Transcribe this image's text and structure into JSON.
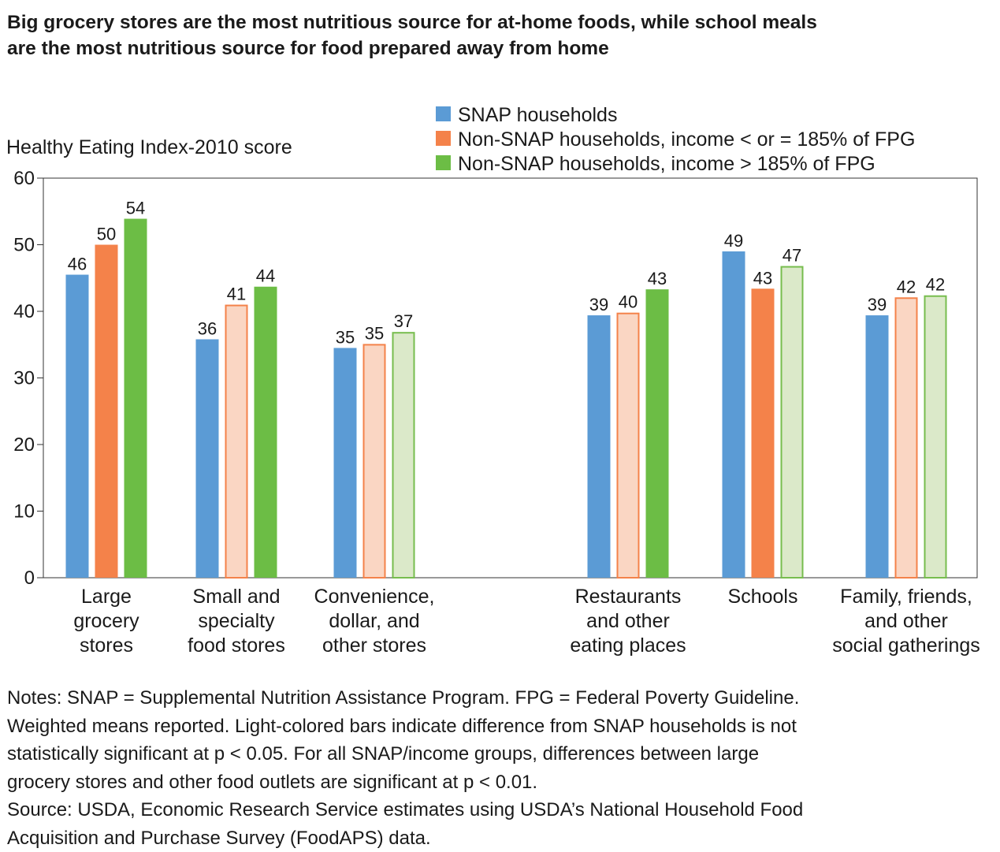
{
  "title_lines": [
    "Big grocery stores are the most nutritious source for at-home foods, while school meals",
    "are the most nutritious source for food prepared away from home"
  ],
  "notes_lines": [
    "Notes: SNAP = Supplemental Nutrition Assistance Program. FPG = Federal Poverty Guideline.",
    "Weighted means reported. Light-colored bars indicate difference from SNAP households is not",
    "statistically significant at p < 0.05. For all SNAP/income groups, differences between large",
    "grocery stores and other food outlets are significant at p < 0.01.",
    "Source: USDA, Economic Research Service estimates using USDA’s National Household Food",
    "Acquisition and Purchase Survey (FoodAPS) data."
  ],
  "colors": {
    "snap": "#5b9bd5",
    "low_income": "#f4824a",
    "low_income_light": "#fad6c3",
    "high_income": "#6cbd45",
    "high_income_light": "#dbe9c9",
    "high_income_light_border": "#77bd4e"
  },
  "chart_data": {
    "type": "bar",
    "title": "Big grocery stores are the most nutritious source for at-home foods, while school meals are the most nutritious source for food prepared away from home",
    "ylabel": "Healthy Eating Index-2010 score",
    "xlabel": "",
    "ylim": [
      0,
      60
    ],
    "yticks": [
      0,
      10,
      20,
      30,
      40,
      50,
      60
    ],
    "grid": false,
    "legend_position": "top-right",
    "categories": [
      [
        "Large",
        "grocery",
        "stores"
      ],
      [
        "Small and",
        "specialty",
        "food stores"
      ],
      [
        "Convenience,",
        "dollar, and",
        "other stores"
      ],
      [
        "Restaurants",
        "and other",
        "eating places"
      ],
      [
        "Schools"
      ],
      [
        "Family, friends,",
        "and other",
        "social gatherings"
      ]
    ],
    "series": [
      {
        "name": "SNAP households",
        "values": [
          45.5,
          35.8,
          34.5,
          39.4,
          49.0,
          39.4
        ],
        "labels": [
          "46",
          "36",
          "35",
          "39",
          "49",
          "39"
        ],
        "significant": [
          true,
          true,
          true,
          true,
          true,
          true
        ]
      },
      {
        "name": "Non-SNAP households, income < or = 185% of FPG",
        "values": [
          50.0,
          41.0,
          35.1,
          39.8,
          43.4,
          42.1
        ],
        "labels": [
          "50",
          "41",
          "35",
          "40",
          "43",
          "42"
        ],
        "significant": [
          true,
          false,
          false,
          false,
          true,
          false
        ]
      },
      {
        "name": "Non-SNAP households, income > 185% of FPG",
        "values": [
          53.9,
          43.7,
          36.9,
          43.3,
          46.8,
          42.4
        ],
        "labels": [
          "54",
          "44",
          "37",
          "43",
          "47",
          "42"
        ],
        "significant": [
          true,
          true,
          false,
          true,
          false,
          false
        ]
      }
    ]
  }
}
